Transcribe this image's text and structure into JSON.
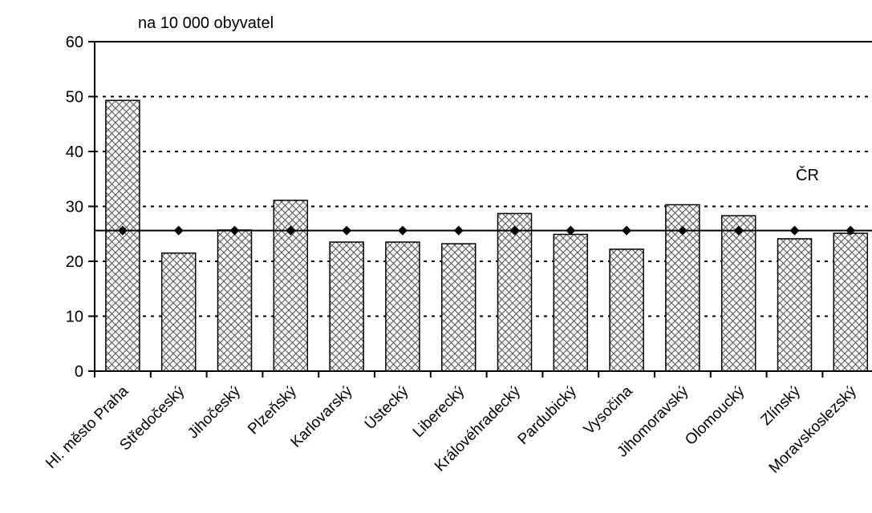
{
  "chart_data": {
    "type": "bar",
    "unit_label": "na 10 000 obyvatel",
    "categories": [
      "Hl. město Praha",
      "Středočeský",
      "Jihočeský",
      "Plzeňský",
      "Karlovarský",
      "Ústecký",
      "Liberecký",
      "Královéhradecký",
      "Pardubický",
      "Vysočina",
      "Jihomoravský",
      "Olomoucký",
      "Zlínský",
      "Moravskoslezský"
    ],
    "series": [
      {
        "values": [
          49.3,
          21.5,
          25.7,
          31.1,
          23.5,
          23.5,
          23.2,
          28.7,
          24.9,
          22.2,
          30.3,
          28.3,
          24.1,
          25.1
        ]
      },
      {
        "name": "ČR",
        "type": "line",
        "values": [
          25.6,
          25.6,
          25.6,
          25.6,
          25.6,
          25.6,
          25.6,
          25.6,
          25.6,
          25.6,
          25.6,
          25.6,
          25.6,
          25.6
        ]
      }
    ],
    "ylim": [
      0,
      60
    ],
    "yticks": [
      "0",
      "10",
      "20",
      "30",
      "40",
      "50",
      "60"
    ],
    "grid": "dotted horizontal",
    "colors": {
      "bar_fill": "#ffffff",
      "bar_pattern": "#555555",
      "line": "#000000"
    }
  }
}
